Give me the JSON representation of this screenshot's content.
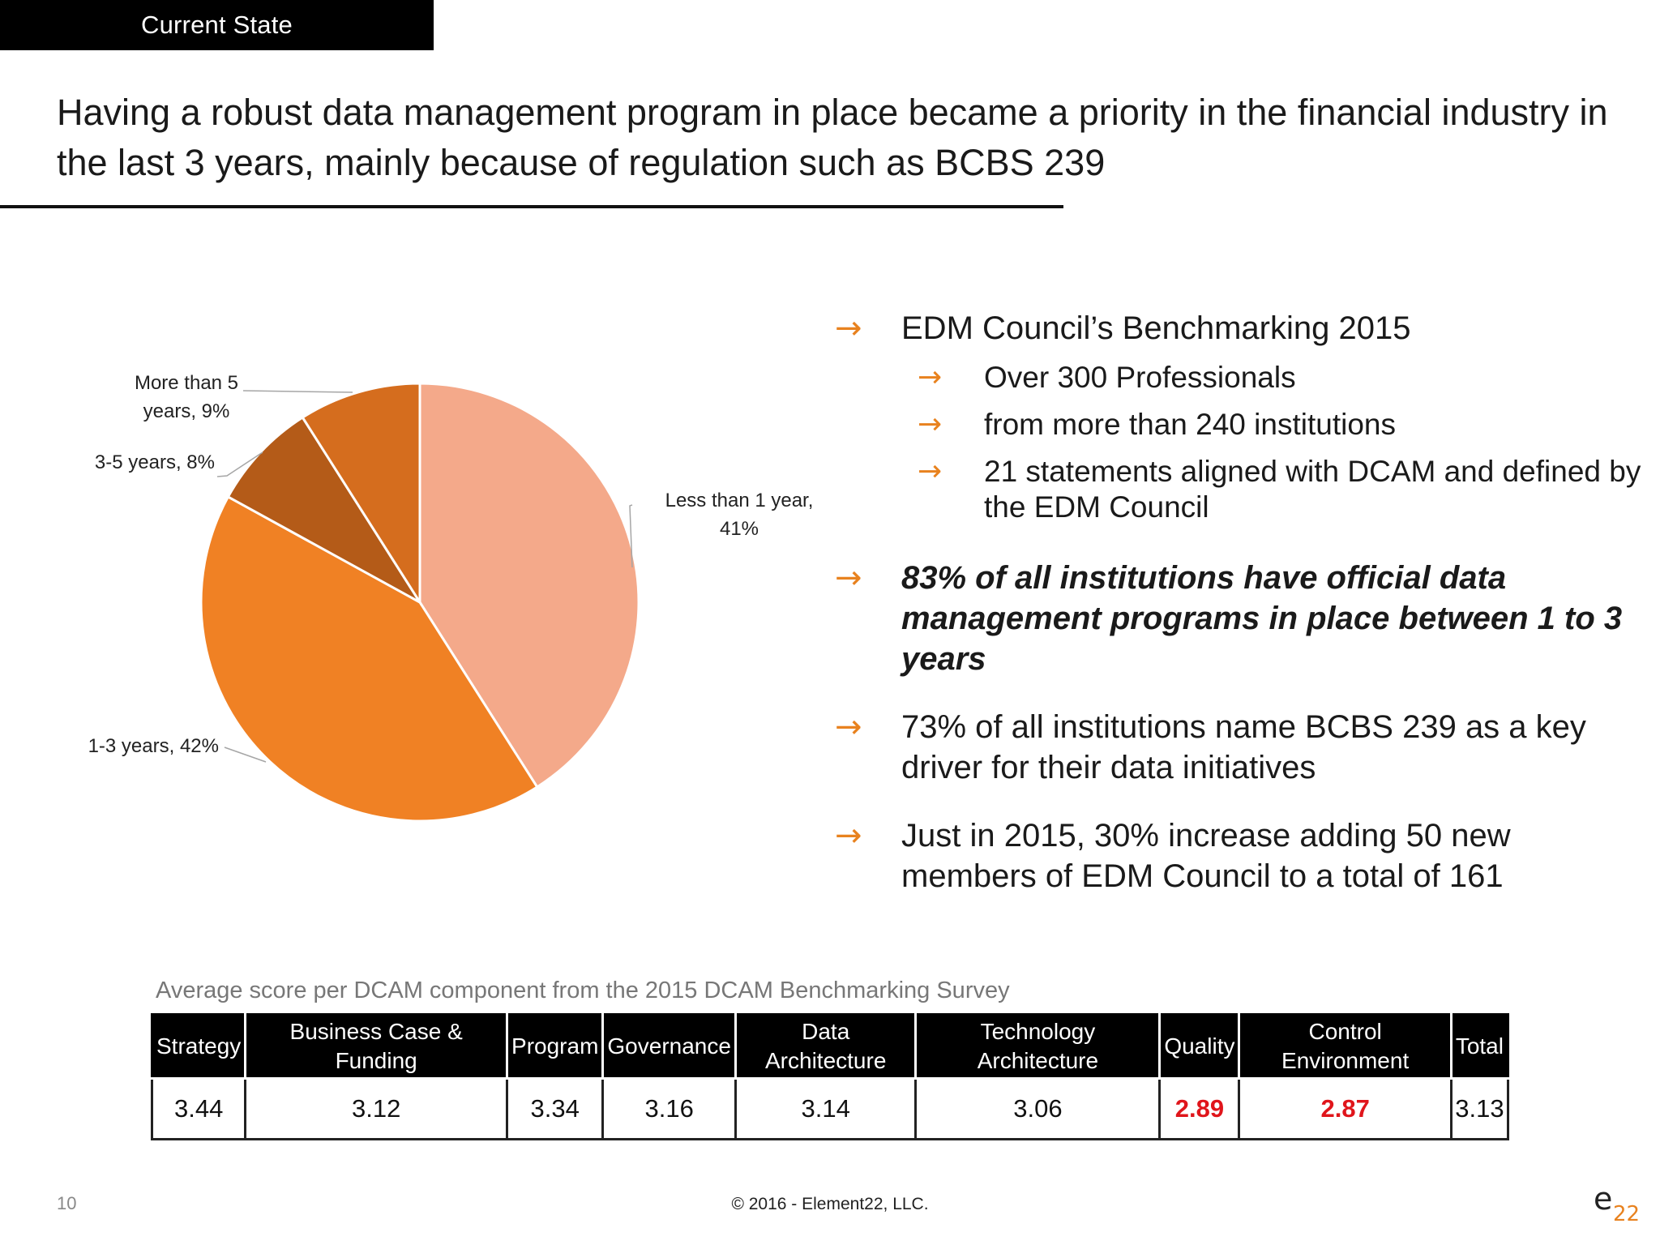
{
  "header": {
    "tag": "Current State",
    "headline": "Having a robust data management program in place became a priority in the financial industry in the last 3 years, mainly because of regulation such as BCBS 239"
  },
  "chart_data": {
    "type": "pie",
    "slices": [
      {
        "label": "Less than 1 year",
        "value": 41,
        "display": "Less than 1 year,\n41%",
        "color": "#f4a98a"
      },
      {
        "label": "1-3 years",
        "value": 42,
        "display": "1-3 years, 42%",
        "color": "#f08124"
      },
      {
        "label": "3-5 years",
        "value": 8,
        "display": "3-5 years, 8%",
        "color": "#b45b18"
      },
      {
        "label": "More than 5 years",
        "value": 9,
        "display": "More than 5\nyears, 9%",
        "color": "#d56d1e"
      }
    ]
  },
  "bullets": [
    {
      "text": "EDM Council’s Benchmarking 2015",
      "subs": [
        "Over 300 Professionals",
        "from more than 240 institutions",
        "21 statements aligned with DCAM and defined by the EDM Council"
      ]
    },
    {
      "text": "83% of all institutions have official data management programs in place between 1 to 3 years",
      "emphasis": true
    },
    {
      "text": "73% of all institutions name BCBS 239 as a key driver for their data initiatives"
    },
    {
      "text": "Just in 2015, 30% increase adding 50 new members of EDM Council to a total of 161"
    }
  ],
  "arrow_glyph": "→",
  "table": {
    "caption": "Average score per DCAM component from the 2015 DCAM Benchmarking Survey",
    "headers": [
      "Strategy",
      "Business Case & Funding",
      "Program",
      "Governance",
      "Data Architecture",
      "Technology Architecture",
      "Quality",
      "Control Environment",
      "Total"
    ],
    "values": [
      "3.44",
      "3.12",
      "3.34",
      "3.16",
      "3.14",
      "3.06",
      "2.89",
      "2.87",
      "3.13"
    ],
    "highlight_color": "#e0151b"
  },
  "footer": {
    "page_number": "10",
    "copyright": "© 2016 - Element22, LLC.",
    "logo_text": "e22"
  }
}
